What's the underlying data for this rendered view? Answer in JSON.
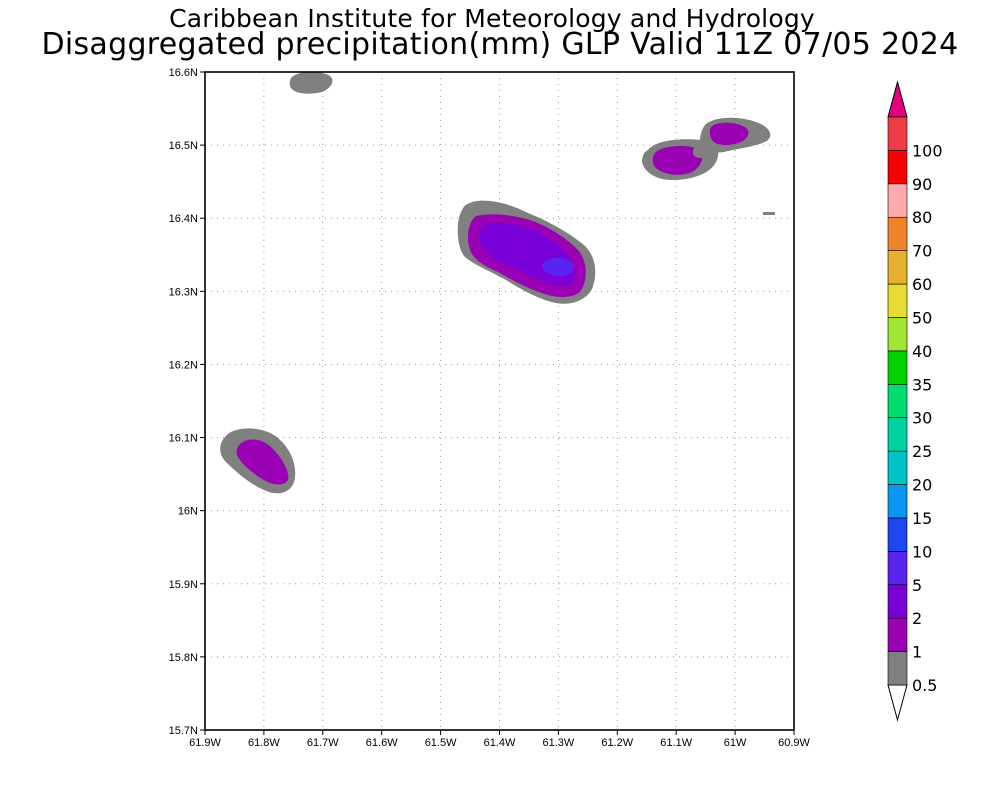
{
  "title": {
    "line1": "Caribbean Institute for Meteorology and Hydrology",
    "line2": "Disaggregated precipitation(mm) GLP Valid 11Z 07/05 2024"
  },
  "map": {
    "lon_range": [
      -61.9,
      -60.9
    ],
    "lat_range": [
      15.7,
      16.6
    ],
    "x_tick_labels": [
      "61.9W",
      "61.8W",
      "61.7W",
      "61.6W",
      "61.5W",
      "61.4W",
      "61.3W",
      "61.2W",
      "61.1W",
      "61W",
      "60.9W"
    ],
    "y_tick_labels": [
      "16.6N",
      "16.5N",
      "16.4N",
      "16.3N",
      "16.2N",
      "16.1N",
      "16N",
      "15.9N",
      "15.8N",
      "15.7N"
    ]
  },
  "colorbar": {
    "levels": [
      {
        "label": "0.5",
        "color": "#808080"
      },
      {
        "label": "1",
        "color": "#9a00b4"
      },
      {
        "label": "2",
        "color": "#7a00d8"
      },
      {
        "label": "5",
        "color": "#5a24f0"
      },
      {
        "label": "10",
        "color": "#1e46f2"
      },
      {
        "label": "15",
        "color": "#0a96f0"
      },
      {
        "label": "20",
        "color": "#00c4c8"
      },
      {
        "label": "25",
        "color": "#00d2a0"
      },
      {
        "label": "30",
        "color": "#00dc6e"
      },
      {
        "label": "35",
        "color": "#00d200"
      },
      {
        "label": "40",
        "color": "#a0e632"
      },
      {
        "label": "50",
        "color": "#e6dc32"
      },
      {
        "label": "60",
        "color": "#e6af2d"
      },
      {
        "label": "70",
        "color": "#f08228"
      },
      {
        "label": "80",
        "color": "#ffaaaa"
      },
      {
        "label": "90",
        "color": "#fa0000"
      },
      {
        "label": "100",
        "color": "#f03c46"
      }
    ],
    "top_arrow_color": "#e6007e"
  },
  "precip_cells": [
    {
      "name": "cell-north-edge",
      "lon": -61.72,
      "lat": 16.585,
      "peak_mm": 0.5
    },
    {
      "name": "cell-central",
      "lon": -61.34,
      "lat": 16.35,
      "peak_mm": 10
    },
    {
      "name": "cell-northeast-1",
      "lon": -61.1,
      "lat": 16.48,
      "peak_mm": 2
    },
    {
      "name": "cell-northeast-2",
      "lon": -61.02,
      "lat": 16.51,
      "peak_mm": 2
    },
    {
      "name": "cell-west",
      "lon": -61.8,
      "lat": 16.07,
      "peak_mm": 2
    },
    {
      "name": "cell-tiny-east",
      "lon": -60.94,
      "lat": 16.405,
      "peak_mm": 0.5
    }
  ]
}
